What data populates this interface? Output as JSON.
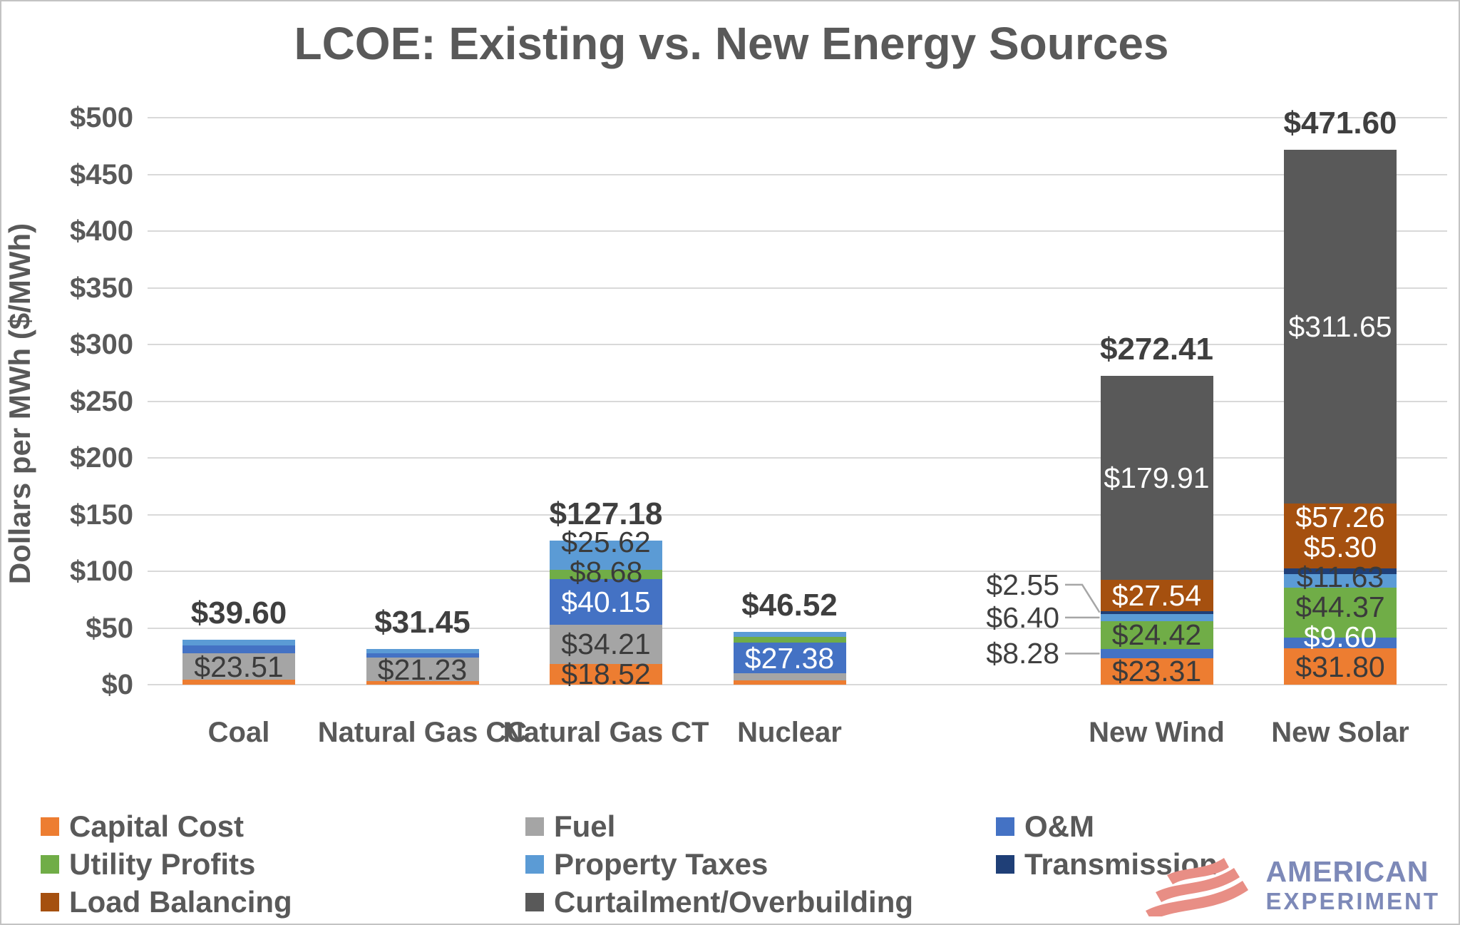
{
  "title": "LCOE: Existing vs. New Energy Sources",
  "chart_data": {
    "type": "bar",
    "stacked": true,
    "title": "LCOE: Existing vs. New Energy Sources",
    "xlabel": "",
    "ylabel": "Dollars per MWh ($/MWh)",
    "ylim": [
      0,
      500
    ],
    "ytick_step": 50,
    "ytick_labels": [
      "$0",
      "$50",
      "$100",
      "$150",
      "$200",
      "$250",
      "$300",
      "$350",
      "$400",
      "$450",
      "$500"
    ],
    "grid": "horizontal",
    "categories": [
      "Coal",
      "Natural Gas CC",
      "Natural Gas CT",
      "Nuclear",
      "New Wind",
      "New Solar"
    ],
    "totals": [
      "$39.60",
      "$31.45",
      "$127.18",
      "$46.52",
      "$272.41",
      "$471.60"
    ],
    "series": [
      {
        "name": "Capital Cost",
        "color": "#ED7D31",
        "label_color": "#3b3b3b",
        "values": [
          4.2,
          2.9,
          18.52,
          3.94,
          23.31,
          31.8
        ],
        "labels": [
          null,
          null,
          "$18.52",
          null,
          "$23.31",
          "$31.80"
        ]
      },
      {
        "name": "Fuel",
        "color": "#A5A5A5",
        "label_color": "#3b3b3b",
        "values": [
          23.51,
          21.23,
          34.21,
          5.9,
          0,
          0
        ],
        "labels": [
          "$23.51",
          "$21.23",
          "$34.21",
          null,
          null,
          null
        ]
      },
      {
        "name": "O&M",
        "color": "#4472C4",
        "label_color": "#ffffff",
        "values": [
          7.0,
          3.3,
          40.15,
          27.38,
          8.28,
          9.6
        ],
        "labels": [
          null,
          null,
          "$40.15",
          "$27.38",
          null,
          "$9.60"
        ]
      },
      {
        "name": "Utility Profits",
        "color": "#70AD47",
        "label_color": "#3b3b3b",
        "values": [
          0,
          0,
          8.68,
          4.8,
          24.42,
          44.37
        ],
        "labels": [
          null,
          null,
          "$8.68",
          null,
          "$24.42",
          "$44.37"
        ]
      },
      {
        "name": "Property Taxes",
        "color": "#5B9BD5",
        "label_color": "#3b3b3b",
        "values": [
          4.89,
          4.02,
          25.62,
          4.5,
          6.4,
          11.63
        ],
        "labels": [
          null,
          null,
          "$25.62",
          null,
          null,
          "$11.63"
        ]
      },
      {
        "name": "Transmission",
        "color": "#1F3F77",
        "label_color": "#ffffff",
        "values": [
          0,
          0,
          0,
          0,
          2.55,
          5.3
        ],
        "labels": [
          null,
          null,
          null,
          null,
          null,
          "$5.30"
        ]
      },
      {
        "name": "Load Balancing",
        "color": "#A5500F",
        "label_color": "#ffffff",
        "values": [
          0,
          0,
          0,
          0,
          27.54,
          57.26
        ],
        "labels": [
          null,
          null,
          null,
          null,
          "$27.54",
          "$57.26"
        ]
      },
      {
        "name": "Curtailment/Overbuilding",
        "color": "#595959",
        "label_color": "#ffffff",
        "values": [
          0,
          0,
          0,
          0,
          179.91,
          311.65
        ],
        "labels": [
          null,
          null,
          null,
          null,
          "$179.91",
          "$311.65"
        ]
      }
    ],
    "callouts": [
      {
        "category": "New Wind",
        "series": "O&M",
        "text": "$8.28"
      },
      {
        "category": "New Wind",
        "series": "Property Taxes",
        "text": "$6.40"
      },
      {
        "category": "New Wind",
        "series": "Transmission",
        "text": "$2.55"
      }
    ],
    "legend_position": "bottom"
  },
  "legend": {
    "columns": [
      [
        "Capital Cost",
        "Utility Profits",
        "Load Balancing"
      ],
      [
        "Fuel",
        "Property Taxes",
        "Curtailment/Overbuilding"
      ],
      [
        "O&M",
        "Transmission"
      ]
    ]
  },
  "logo": {
    "line1": "AMERICAN",
    "line2": "EXPERIMENT",
    "flag_color": "#e88e85",
    "text_color": "#7d89b8"
  }
}
